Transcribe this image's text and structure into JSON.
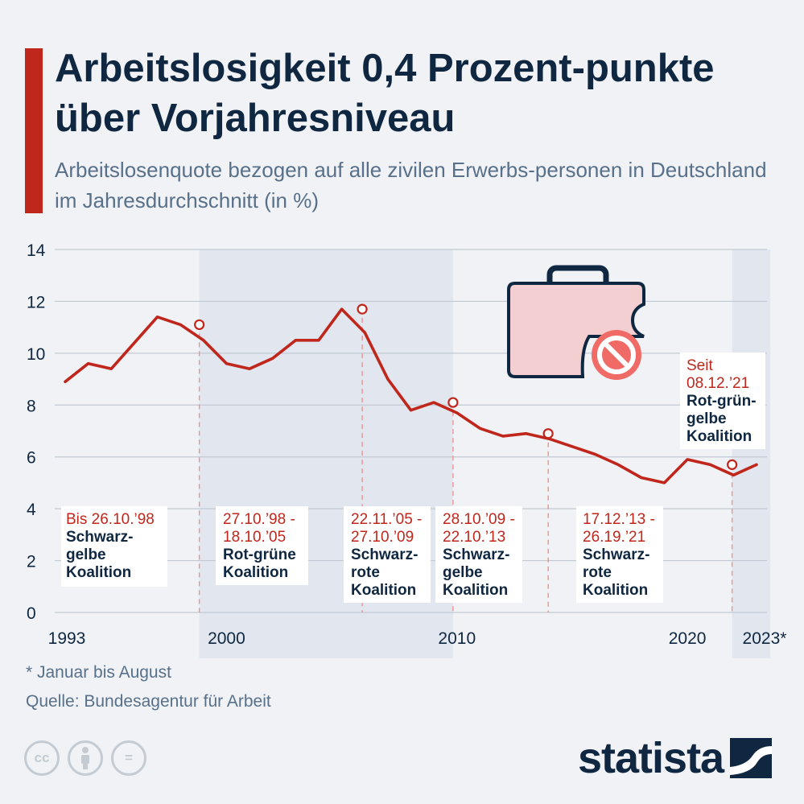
{
  "header": {
    "title": "Arbeitslosigkeit 0,4 Prozent-punkte über Vorjahresniveau",
    "subtitle": "Arbeitslosenquote bezogen auf alle zivilen Erwerbs-personen in Deutschland im Jahresdurchschnitt (in %)"
  },
  "chart_data": {
    "type": "line",
    "years": [
      1993,
      1994,
      1995,
      1996,
      1997,
      1998,
      1999,
      2000,
      2001,
      2002,
      2003,
      2004,
      2005,
      2006,
      2007,
      2008,
      2009,
      2010,
      2011,
      2012,
      2013,
      2014,
      2015,
      2016,
      2017,
      2018,
      2019,
      2020,
      2021,
      2022,
      2023
    ],
    "values": [
      8.9,
      9.6,
      9.4,
      10.4,
      11.4,
      11.1,
      10.5,
      9.6,
      9.4,
      9.8,
      10.5,
      10.5,
      11.7,
      10.8,
      9.0,
      7.8,
      8.1,
      7.7,
      7.1,
      6.8,
      6.9,
      6.7,
      6.4,
      6.1,
      5.7,
      5.2,
      5.0,
      5.9,
      5.7,
      5.3,
      5.7
    ],
    "ylim": [
      0,
      14
    ],
    "y_ticks": [
      "0",
      "2",
      "4",
      "6",
      "8",
      "10",
      "12",
      "14"
    ],
    "x_ticks": [
      {
        "year": 1993,
        "label": "1993"
      },
      {
        "year": 2000,
        "label": "2000"
      },
      {
        "year": 2010,
        "label": "2010"
      },
      {
        "year": 2020,
        "label": "2020"
      },
      {
        "year": 2023,
        "label": "2023*"
      }
    ],
    "grid": true,
    "shaded_periods": [
      [
        1998.82,
        2009.83
      ],
      [
        2021.94,
        2023.6
      ]
    ],
    "markers": [
      {
        "year": 1998.82,
        "value": 11.1
      },
      {
        "year": 2005.89,
        "value": 11.7
      },
      {
        "year": 2009.83,
        "value": 8.1
      },
      {
        "year": 2013.96,
        "value": 6.9
      },
      {
        "year": 2021.94,
        "value": 5.7
      }
    ],
    "annotations": [
      {
        "date": "Bis 26.10.’98",
        "coalition": "Schwarz-gelbe Koalition"
      },
      {
        "date": "27.10.’98 - 18.10.’05",
        "coalition": "Rot-grüne Koalition"
      },
      {
        "date": "22.11.’05 - 27.10.’09",
        "coalition": "Schwarz-rote Koalition"
      },
      {
        "date": "28.10.’09 - 22.10.’13",
        "coalition": "Schwarz-gelbe Koalition"
      },
      {
        "date": "17.12.’13 - 26.19.’21",
        "coalition": "Schwarz-rote Koalition"
      },
      {
        "date": "Seit 08.12.’21",
        "coalition": "Rot-grün-gelbe Koalition"
      }
    ],
    "icon": "briefcase-prohibited-icon",
    "colors": {
      "line": "#c0271c",
      "date_text": "#c0271c",
      "coalition_text": "#0f2740",
      "shade": "#e1e6ef",
      "grid": "#c3c9d2"
    }
  },
  "footer": {
    "footnote": "* Januar bis August",
    "source": "Quelle: Bundesagentur für Arbeit",
    "license_icons": [
      "cc-icon",
      "attribution-icon",
      "no-derivatives-icon"
    ],
    "cc_text": "cc",
    "nd_text": "=",
    "brand": "statista"
  }
}
